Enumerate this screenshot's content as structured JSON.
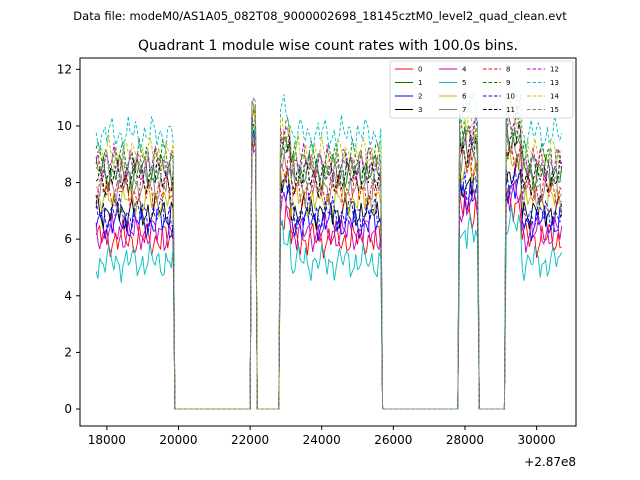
{
  "suptitle": "Data file: modeM0/AS1A05_082T08_9000002698_18145cztM0_level2_quad_clean.evt",
  "chart_data": {
    "type": "line",
    "title": "Quadrant 1 module wise count rates with 100.0s bins.",
    "xlabel": "",
    "ylabel": "",
    "x_offset_label": "+2.87e8",
    "xlim": [
      17250,
      31100
    ],
    "ylim": [
      -0.6,
      12.4
    ],
    "xticks": [
      18000,
      20000,
      22000,
      24000,
      26000,
      28000,
      30000
    ],
    "yticks": [
      0,
      2,
      4,
      6,
      8,
      10,
      12
    ],
    "legend_position": "top-right",
    "bin_width_s": 100,
    "active_intervals": [
      [
        17700,
        19850
      ],
      [
        22050,
        22150
      ],
      [
        22850,
        25650
      ],
      [
        27850,
        28350
      ],
      [
        29150,
        30700
      ]
    ],
    "series": [
      {
        "name": "0",
        "level": 6.0,
        "color": "#ff0000",
        "dash": "solid"
      },
      {
        "name": "1",
        "level": 8.4,
        "color": "#008000",
        "dash": "solid"
      },
      {
        "name": "2",
        "level": 6.6,
        "color": "#0000ff",
        "dash": "solid"
      },
      {
        "name": "3",
        "level": 7.0,
        "color": "#000000",
        "dash": "solid"
      },
      {
        "name": "4",
        "level": 6.2,
        "color": "#bf00bf",
        "dash": "solid"
      },
      {
        "name": "5",
        "level": 5.2,
        "color": "#00bfbf",
        "dash": "solid"
      },
      {
        "name": "6",
        "level": 7.4,
        "color": "#bfbf00",
        "dash": "solid"
      },
      {
        "name": "7",
        "level": 7.9,
        "color": "#808080",
        "dash": "solid"
      },
      {
        "name": "8",
        "level": 7.7,
        "color": "#ff0000",
        "dash": "dashed"
      },
      {
        "name": "9",
        "level": 8.9,
        "color": "#008000",
        "dash": "dashed"
      },
      {
        "name": "10",
        "level": 6.9,
        "color": "#0000ff",
        "dash": "dashed"
      },
      {
        "name": "11",
        "level": 8.2,
        "color": "#000000",
        "dash": "dashed"
      },
      {
        "name": "12",
        "level": 8.7,
        "color": "#bf00bf",
        "dash": "dashed"
      },
      {
        "name": "13",
        "level": 9.7,
        "color": "#00bfbf",
        "dash": "dashed"
      },
      {
        "name": "14",
        "level": 9.0,
        "color": "#bfbf00",
        "dash": "dashed"
      },
      {
        "name": "15",
        "level": 8.5,
        "color": "#808080",
        "dash": "dashed"
      }
    ]
  }
}
